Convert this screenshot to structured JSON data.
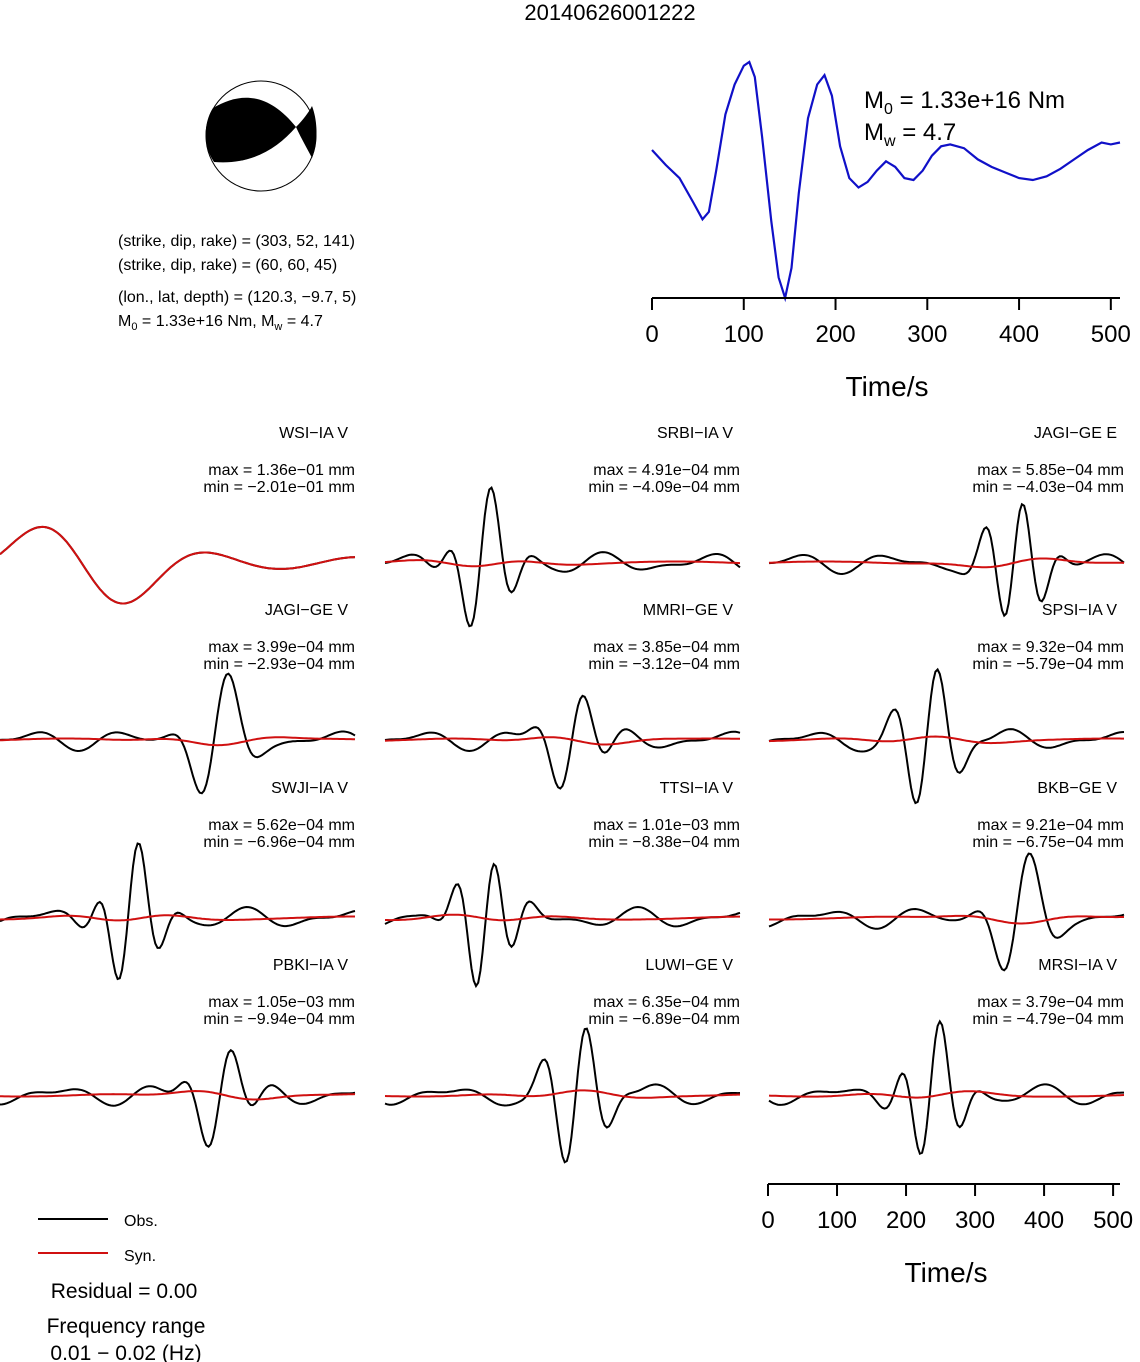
{
  "title": "20140626001222",
  "focal": {
    "plane1": "(strike, dip, rake) = (303, 52, 141)",
    "plane2": "(strike, dip, rake) = (60, 60, 45)",
    "location": "(lon., lat, depth) = (120.3, −9.7, 5)",
    "m0_base": "M",
    "m0_sub": "0",
    "m0_rest": " = 1.33e+16 Nm, M",
    "mw_sub": "w",
    "mw_rest": " = 4.7"
  },
  "stf": {
    "m0_label": "M",
    "m0_sub": "0",
    "m0_value": " = 1.33e+16 Nm",
    "mw_label": "M",
    "mw_sub": "w",
    "mw_value": " = 4.7",
    "xlabel": "Time/s",
    "ticks": [
      0,
      100,
      200,
      300,
      400,
      500
    ],
    "color": "#1010c8"
  },
  "bottom_axis": {
    "xlabel": "Time/s",
    "ticks": [
      0,
      100,
      200,
      300,
      400,
      500
    ]
  },
  "legend": {
    "obs_label": "Obs.",
    "syn_label": "Syn.",
    "obs_color": "#000000",
    "syn_color": "#d01010",
    "residual": "Residual = 0.00",
    "freq_label": "Frequency range",
    "freq_value": "0.01 − 0.02 (Hz)"
  },
  "chart_data": [
    {
      "type": "line",
      "title": "",
      "xlabel": "Time/s",
      "ylabel": "",
      "xlim": [
        0,
        510
      ],
      "series": [
        {
          "name": "",
          "x": [
            0,
            15,
            30,
            45,
            55,
            62,
            70,
            80,
            90,
            100,
            106,
            112,
            120,
            130,
            138,
            145,
            152,
            160,
            170,
            180,
            188,
            196,
            205,
            215,
            225,
            235,
            245,
            255,
            265,
            275,
            285,
            295,
            305,
            315,
            325,
            340,
            355,
            370,
            385,
            400,
            415,
            430,
            445,
            460,
            475,
            490,
            500,
            510
          ],
          "y": [
            0.53,
            0.45,
            0.38,
            0.25,
            0.16,
            0.2,
            0.42,
            0.72,
            0.88,
            0.98,
            1.0,
            0.92,
            0.6,
            0.15,
            -0.15,
            -0.26,
            -0.1,
            0.3,
            0.7,
            0.88,
            0.93,
            0.82,
            0.55,
            0.38,
            0.33,
            0.36,
            0.42,
            0.47,
            0.44,
            0.38,
            0.37,
            0.42,
            0.5,
            0.55,
            0.56,
            0.54,
            0.48,
            0.44,
            0.41,
            0.38,
            0.37,
            0.39,
            0.43,
            0.48,
            0.53,
            0.57,
            0.56,
            0.57
          ]
        }
      ]
    }
  ],
  "stations": [
    {
      "name": "WSI−IA V",
      "max": "max = 1.36e−01 mm",
      "min": "min = −2.01e−01 mm"
    },
    {
      "name": "SRBI−IA V",
      "max": "max = 4.91e−04 mm",
      "min": "min = −4.09e−04 mm"
    },
    {
      "name": "JAGI−GE E",
      "max": "max = 5.85e−04 mm",
      "min": "min = −4.03e−04 mm"
    },
    {
      "name": "JAGI−GE V",
      "max": "max = 3.99e−04 mm",
      "min": "min = −2.93e−04 mm"
    },
    {
      "name": "MMRI−GE V",
      "max": "max = 3.85e−04 mm",
      "min": "min = −3.12e−04 mm"
    },
    {
      "name": "SPSI−IA V",
      "max": "max = 9.32e−04 mm",
      "min": "min = −5.79e−04 mm"
    },
    {
      "name": "SWJI−IA V",
      "max": "max = 5.62e−04 mm",
      "min": "min = −6.96e−04 mm"
    },
    {
      "name": "TTSI−IA V",
      "max": "max = 1.01e−03 mm",
      "min": "min = −8.38e−04 mm"
    },
    {
      "name": "BKB−GE V",
      "max": "max = 9.21e−04 mm",
      "min": "min = −6.75e−04 mm"
    },
    {
      "name": "PBKI−IA V",
      "max": "max = 1.05e−03 mm",
      "min": "min = −9.94e−04 mm"
    },
    {
      "name": "LUWI−GE V",
      "max": "max = 6.35e−04 mm",
      "min": "min = −6.89e−04 mm"
    },
    {
      "name": "MRSI−IA V",
      "max": "max = 3.79e−04 mm",
      "min": "min = −4.79e−04 mm"
    }
  ]
}
